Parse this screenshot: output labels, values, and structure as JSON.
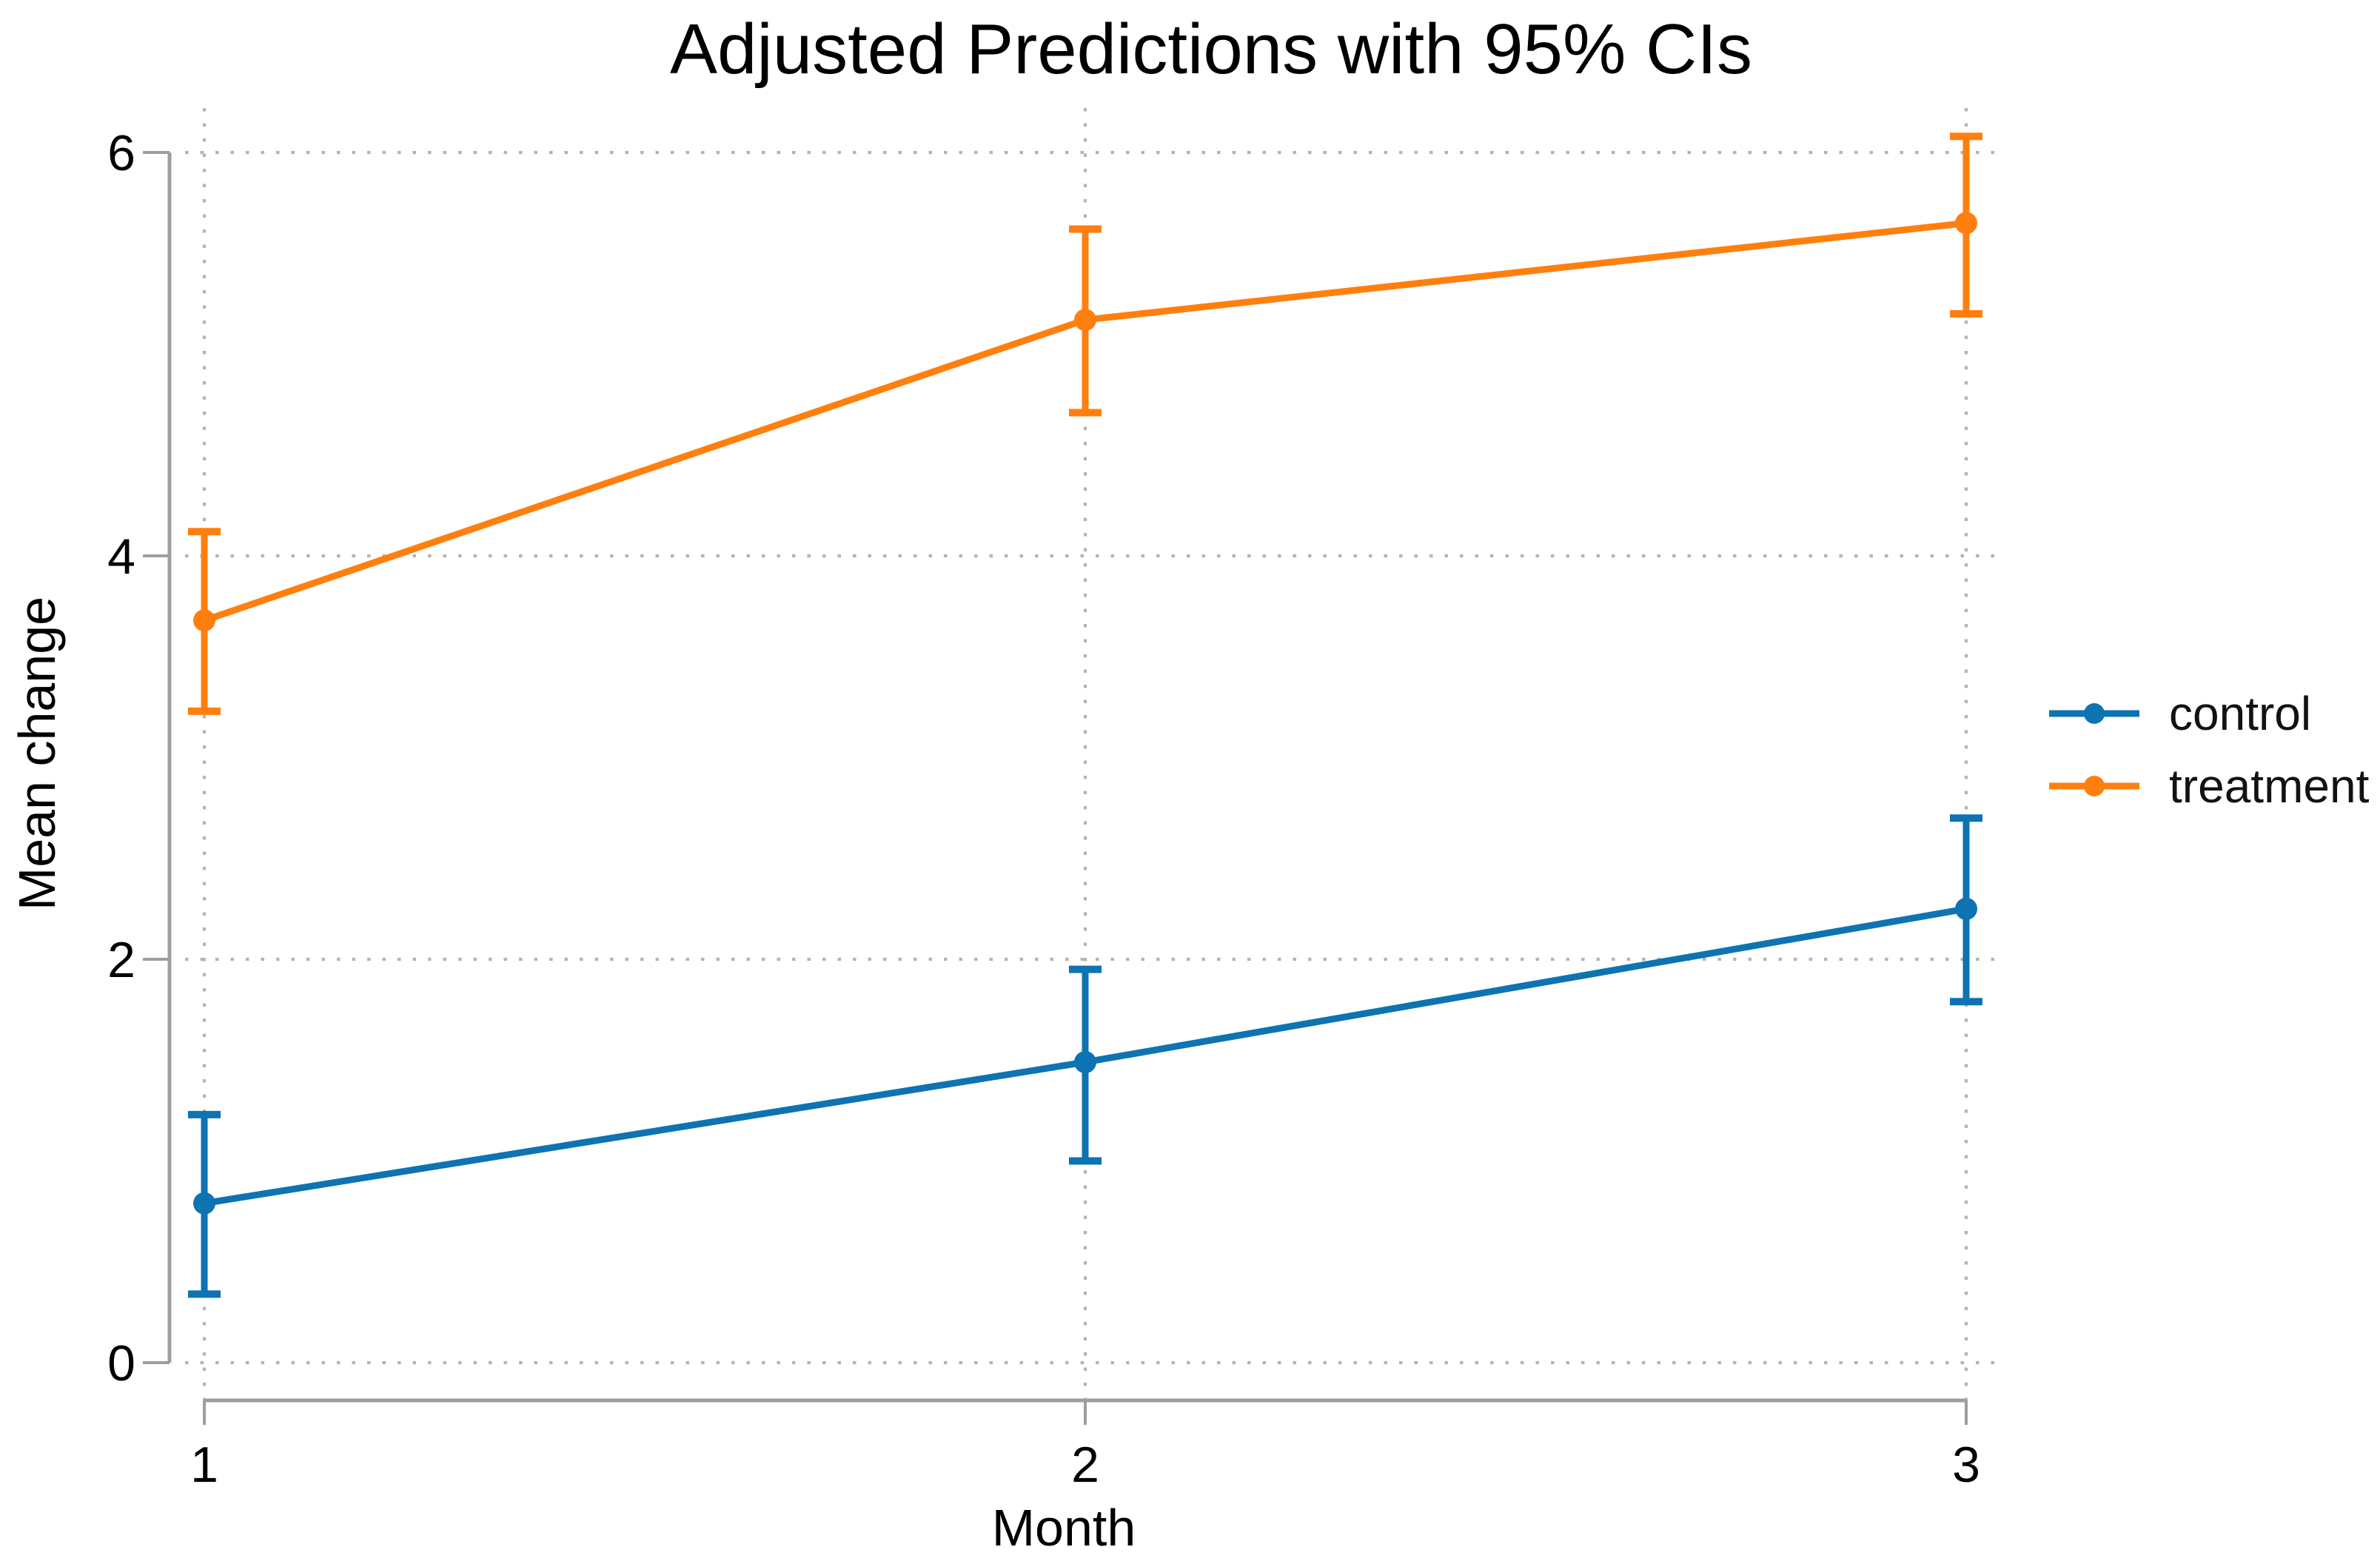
{
  "chart_data": {
    "type": "line",
    "title": "Adjusted Predictions with 95% CIs",
    "xlabel": "Month",
    "ylabel": "Mean change",
    "x": [
      1,
      2,
      3
    ],
    "xticks": [
      1,
      2,
      3
    ],
    "yticks": [
      0,
      2,
      4,
      6
    ],
    "xlim": [
      1,
      3
    ],
    "ylim": [
      0,
      6.2
    ],
    "grid": "dotted horizontal and vertical",
    "legend_position": "right-outside-middle",
    "error_bars": "95% confidence intervals with caps",
    "series": [
      {
        "name": "control",
        "color": "#0e73b2",
        "values": [
          0.79,
          1.49,
          2.25
        ],
        "ci_low": [
          0.34,
          1.0,
          1.79
        ],
        "ci_high": [
          1.23,
          1.95,
          2.7
        ]
      },
      {
        "name": "treatment",
        "color": "#ff7f0e",
        "values": [
          3.68,
          5.17,
          5.65
        ],
        "ci_low": [
          3.23,
          4.71,
          5.2
        ],
        "ci_high": [
          4.12,
          5.62,
          6.08
        ]
      }
    ],
    "colors": {
      "axis": "#9e9e9e",
      "grid": "#b4b4b4",
      "tick_label": "#000000"
    }
  }
}
